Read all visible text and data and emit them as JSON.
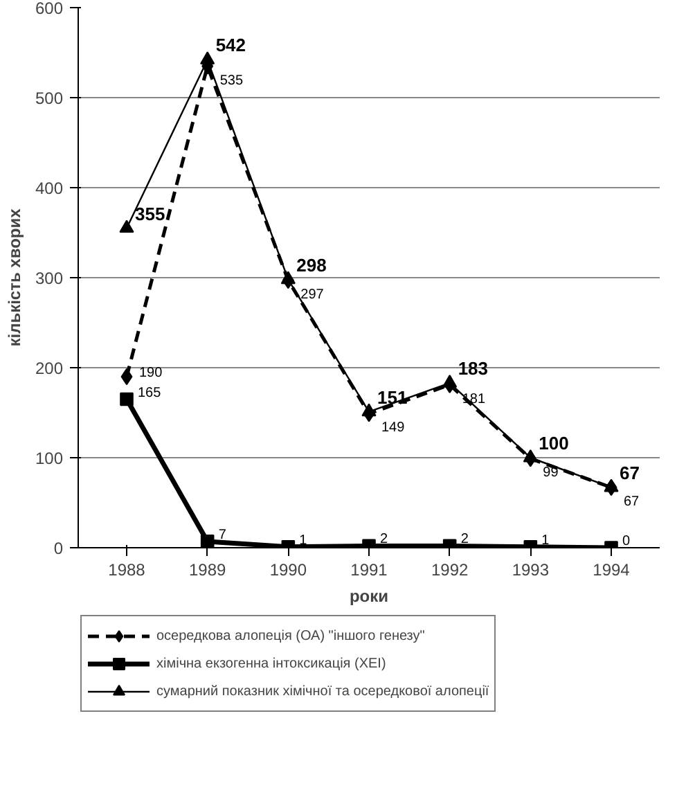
{
  "chart_data": {
    "type": "line",
    "xlabel": "роки",
    "ylabel": "кількість хворих",
    "categories": [
      "1988",
      "1989",
      "1990",
      "1991",
      "1992",
      "1993",
      "1994"
    ],
    "ylim": [
      0,
      600
    ],
    "yticks": [
      0,
      100,
      200,
      300,
      400,
      500,
      600
    ],
    "grid": "y",
    "legend": "bottom",
    "data_labels": true,
    "series": [
      {
        "name": "осередкова алопеція (ОА) \"іншого генезу\"",
        "color": "#000000",
        "marker": "diamond",
        "line_style": "dashed",
        "values": [
          190,
          535,
          297,
          149,
          181,
          99,
          67
        ]
      },
      {
        "name": "хімічна екзогенна інтоксикація (ХЕІ)",
        "color": "#000000",
        "marker": "square",
        "line_style": "solid",
        "values": [
          165,
          7,
          1,
          2,
          2,
          1,
          0
        ]
      },
      {
        "name": "сумарний показник хімічної та осередкової алопеції",
        "color": "#000000",
        "marker": "triangle",
        "line_style": "solid",
        "values": [
          355,
          542,
          298,
          151,
          183,
          100,
          67
        ]
      }
    ]
  }
}
